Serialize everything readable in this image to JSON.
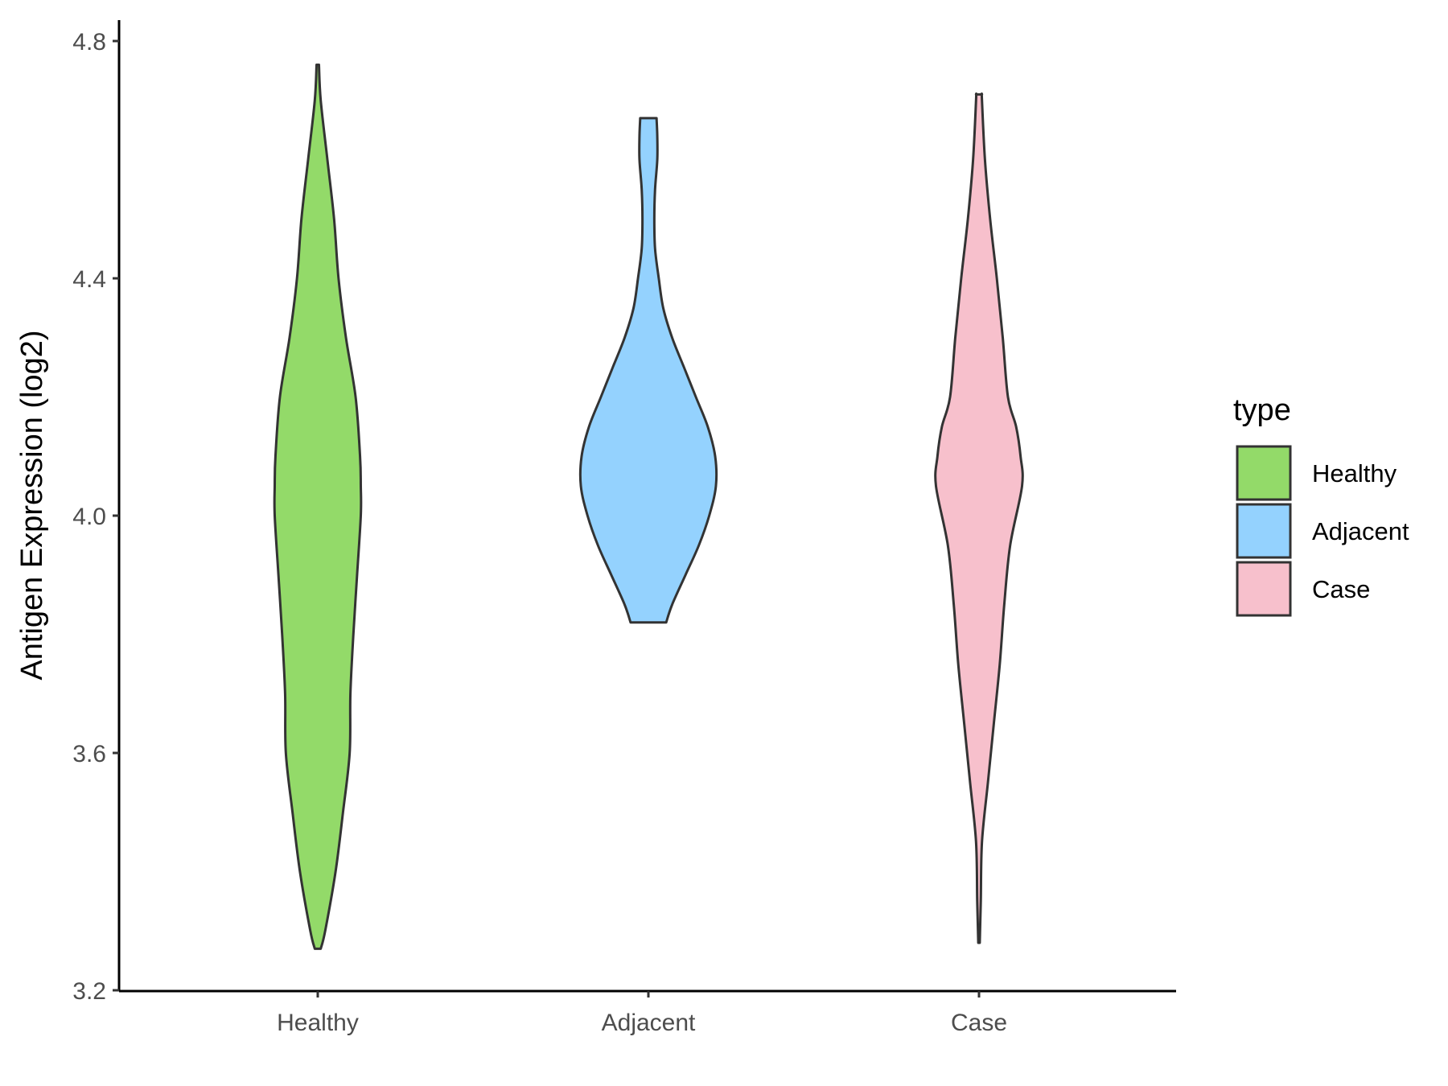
{
  "chart_data": {
    "type": "violin",
    "ylabel": "Antigen Expression (log2)",
    "xlabel": "",
    "ylim": [
      3.2,
      4.8
    ],
    "yticks": [
      "3.2",
      "3.6",
      "4.0",
      "4.4",
      "4.8"
    ],
    "grid": false,
    "categories": [
      "Healthy",
      "Adjacent",
      "Case"
    ],
    "legend": {
      "title": "type",
      "placement": "right",
      "items": [
        "Healthy",
        "Adjacent",
        "Case"
      ]
    },
    "series": [
      {
        "name": "Healthy",
        "color": "#93DA69",
        "min": 3.27,
        "max": 4.76,
        "profile": [
          [
            3.27,
            0.02
          ],
          [
            3.3,
            0.05
          ],
          [
            3.4,
            0.12
          ],
          [
            3.5,
            0.17
          ],
          [
            3.6,
            0.215
          ],
          [
            3.7,
            0.22
          ],
          [
            3.8,
            0.24
          ],
          [
            3.9,
            0.265
          ],
          [
            4.0,
            0.29
          ],
          [
            4.05,
            0.29
          ],
          [
            4.1,
            0.285
          ],
          [
            4.2,
            0.255
          ],
          [
            4.3,
            0.19
          ],
          [
            4.4,
            0.14
          ],
          [
            4.5,
            0.11
          ],
          [
            4.6,
            0.065
          ],
          [
            4.7,
            0.02
          ],
          [
            4.76,
            0.008
          ]
        ]
      },
      {
        "name": "Adjacent",
        "color": "#94D2FE",
        "min": 3.82,
        "max": 4.67,
        "profile": [
          [
            3.82,
            0.12
          ],
          [
            3.85,
            0.16
          ],
          [
            3.9,
            0.25
          ],
          [
            3.95,
            0.34
          ],
          [
            4.0,
            0.41
          ],
          [
            4.05,
            0.455
          ],
          [
            4.1,
            0.45
          ],
          [
            4.15,
            0.4
          ],
          [
            4.2,
            0.32
          ],
          [
            4.25,
            0.24
          ],
          [
            4.3,
            0.16
          ],
          [
            4.35,
            0.1
          ],
          [
            4.4,
            0.07
          ],
          [
            4.45,
            0.045
          ],
          [
            4.5,
            0.04
          ],
          [
            4.55,
            0.045
          ],
          [
            4.6,
            0.06
          ],
          [
            4.64,
            0.06
          ],
          [
            4.67,
            0.055
          ]
        ]
      },
      {
        "name": "Case",
        "color": "#F7C0CC",
        "min": 3.28,
        "max": 4.71,
        "profile": [
          [
            3.28,
            0.005
          ],
          [
            3.35,
            0.012
          ],
          [
            3.45,
            0.02
          ],
          [
            3.55,
            0.06
          ],
          [
            3.65,
            0.1
          ],
          [
            3.75,
            0.14
          ],
          [
            3.85,
            0.17
          ],
          [
            3.95,
            0.21
          ],
          [
            4.05,
            0.29
          ],
          [
            4.1,
            0.28
          ],
          [
            4.15,
            0.25
          ],
          [
            4.2,
            0.195
          ],
          [
            4.3,
            0.16
          ],
          [
            4.4,
            0.12
          ],
          [
            4.5,
            0.075
          ],
          [
            4.6,
            0.04
          ],
          [
            4.7,
            0.02
          ],
          [
            4.71,
            0.02
          ]
        ]
      }
    ]
  }
}
